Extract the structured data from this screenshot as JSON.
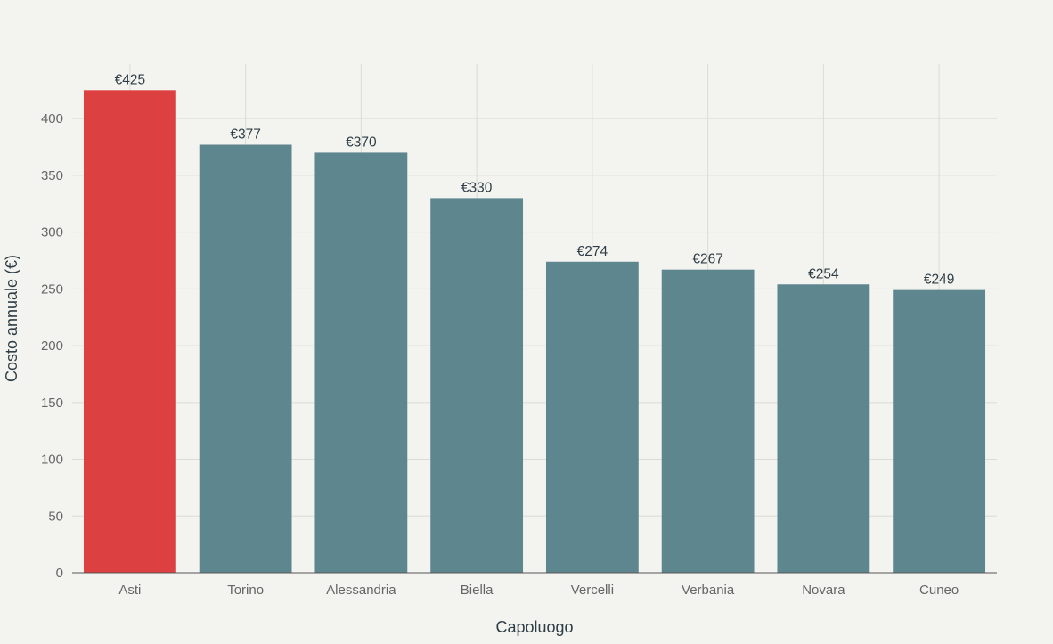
{
  "chart_data": {
    "type": "bar",
    "title": "",
    "xlabel": "Capoluogo",
    "ylabel": "Costo annuale (€)",
    "categories": [
      "Asti",
      "Torino",
      "Alessandria",
      "Biella",
      "Vercelli",
      "Verbania",
      "Novara",
      "Cuneo"
    ],
    "values": [
      425,
      377,
      370,
      330,
      274,
      267,
      254,
      249
    ],
    "data_labels": [
      "€425",
      "€377",
      "€370",
      "€330",
      "€274",
      "€267",
      "€254",
      "€249"
    ],
    "yticks": [
      0,
      50,
      100,
      150,
      200,
      250,
      300,
      350,
      400
    ],
    "ylim": [
      0,
      448
    ],
    "grid": true,
    "legend": "none",
    "highlight_index": 0,
    "colors": {
      "highlight": "#dc4040",
      "bar": "#5e868e",
      "background": "#f3f3ef"
    }
  }
}
